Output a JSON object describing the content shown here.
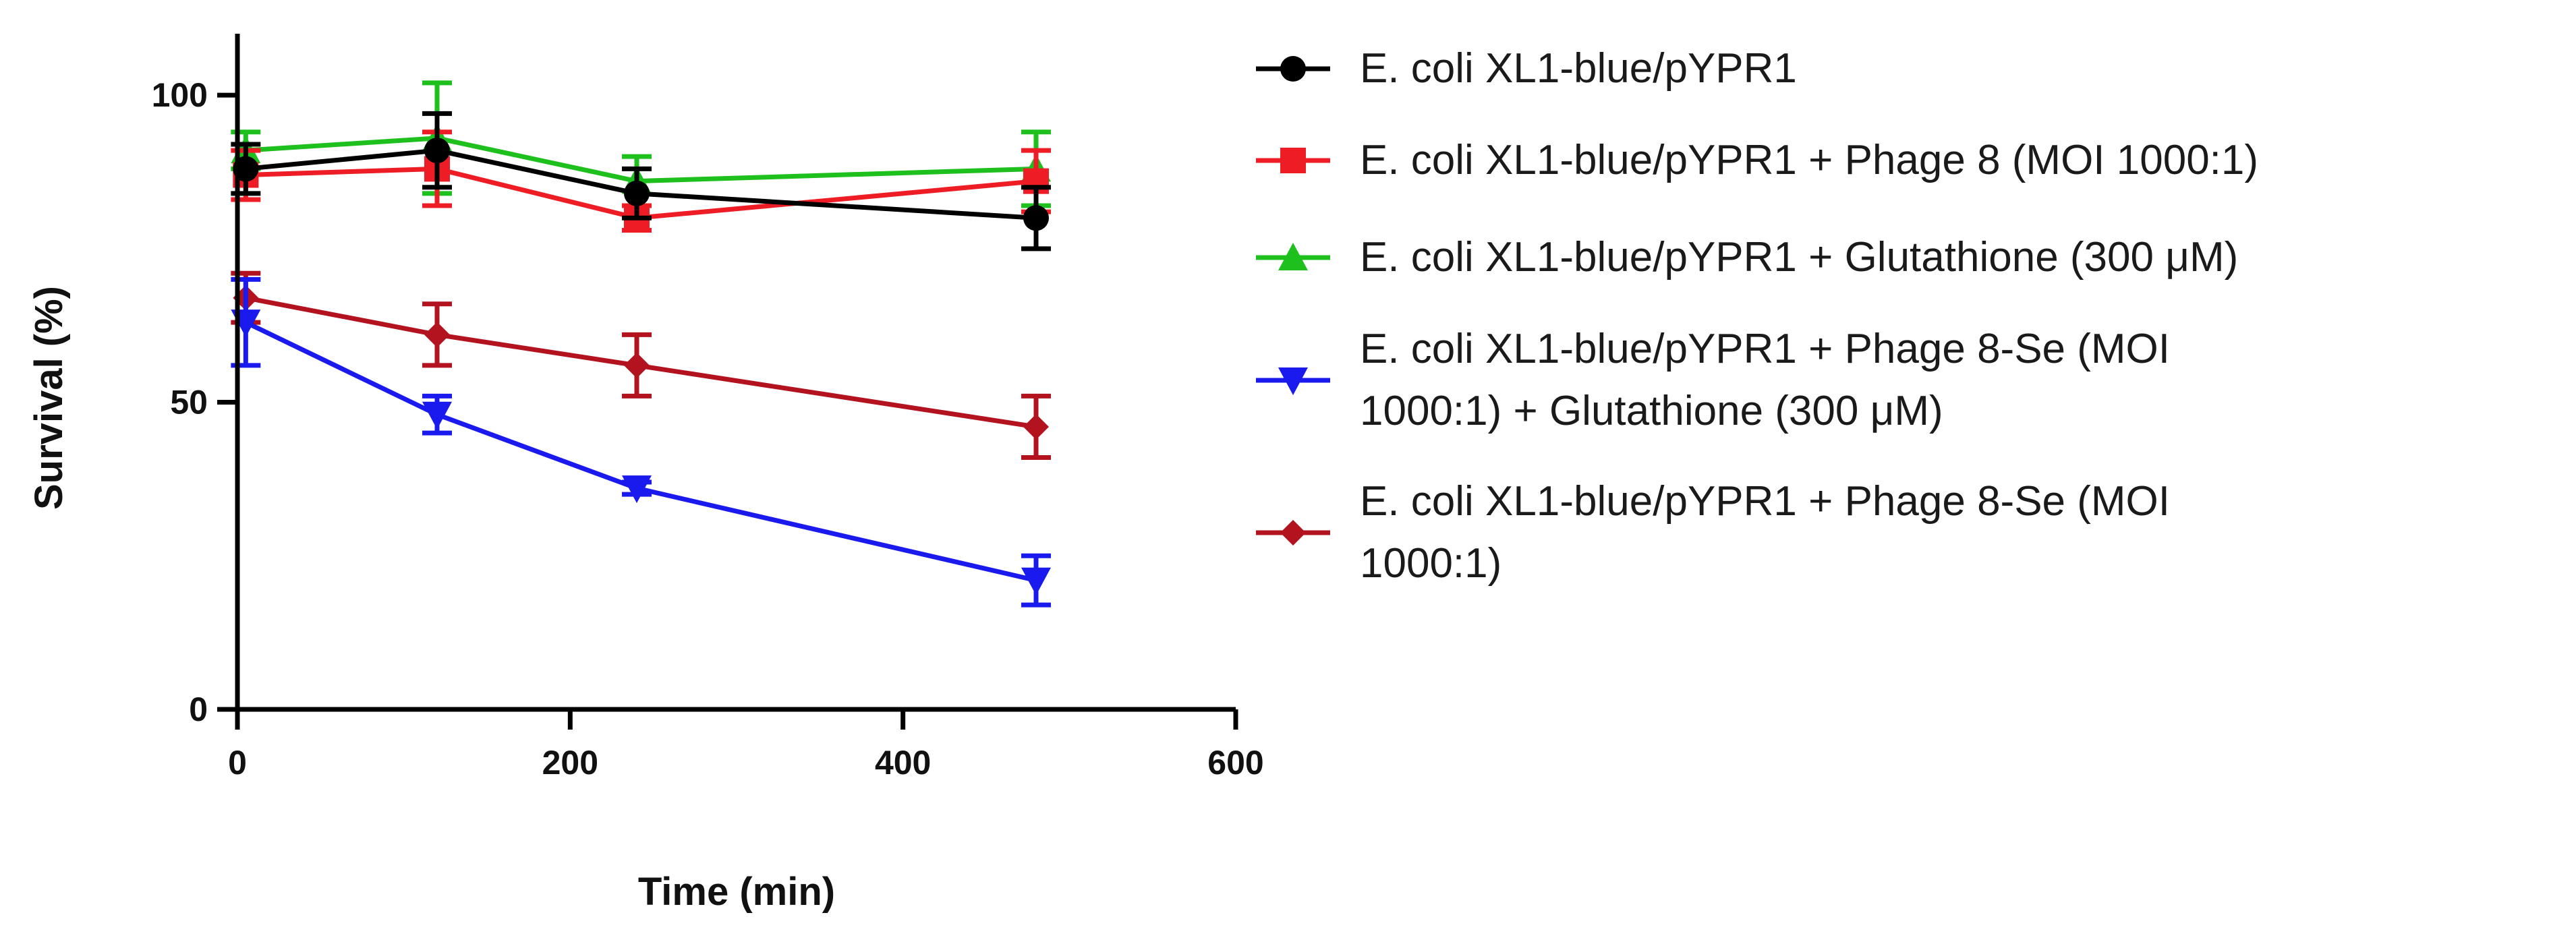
{
  "chart_data": {
    "type": "line",
    "title": "",
    "xlabel": "Time (min)",
    "ylabel": "Survival (%)",
    "xlim": [
      0,
      600
    ],
    "ylim": [
      0,
      110
    ],
    "xticks": [
      0,
      200,
      400,
      600
    ],
    "yticks": [
      0,
      50,
      100
    ],
    "x_tick_labels": [
      "0",
      "200",
      "400",
      "600"
    ],
    "y_tick_labels": [
      "0",
      "50",
      "100"
    ],
    "grid": false,
    "legend_position": "right",
    "x": [
      5,
      120,
      240,
      480
    ],
    "series": [
      {
        "name": "E. coli XL1-blue/pYPR1",
        "legend_lines": [
          "E. coli XL1-blue/pYPR1"
        ],
        "color": "#000000",
        "marker": "circle",
        "values": [
          88,
          91,
          84,
          80
        ],
        "errors": [
          4,
          6,
          4,
          5
        ]
      },
      {
        "name": "E. coli XL1-blue/pYPR1 + Phage 8 (MOI 1000:1)",
        "legend_lines": [
          "E. coli XL1-blue/pYPR1 + Phage 8 (MOI 1000:1)"
        ],
        "color": "#ee1c24",
        "marker": "square",
        "values": [
          87,
          88,
          80,
          86
        ],
        "errors": [
          4,
          6,
          2,
          5
        ]
      },
      {
        "name": "E. coli XL1-blue/pYPR1 + Glutathione (300 μM)",
        "legend_lines": [
          "E. coli XL1-blue/pYPR1 + Glutathione (300 μM)"
        ],
        "color": "#1ec01e",
        "marker": "triangle-up",
        "values": [
          91,
          93,
          86,
          88
        ],
        "errors": [
          3,
          9,
          4,
          6
        ]
      },
      {
        "name": "E. coli XL1-blue/pYPR1 + Phage 8-Se (MOI 1000:1) + Glutathione (300 μM)",
        "legend_lines": [
          "E. coli XL1-blue/pYPR1 + Phage 8-Se (MOI",
          "1000:1) + Glutathione (300 μM)"
        ],
        "color": "#1a1aee",
        "marker": "triangle-down",
        "values": [
          63,
          48,
          36,
          21
        ],
        "errors": [
          7,
          3,
          1,
          4
        ]
      },
      {
        "name": "E. coli XL1-blue/pYPR1 + Phage 8-Se (MOI 1000:1)",
        "legend_lines": [
          "E. coli XL1-blue/pYPR1 + Phage 8-Se (MOI",
          "1000:1)"
        ],
        "color": "#b3121f",
        "marker": "diamond",
        "values": [
          67,
          61,
          56,
          46
        ],
        "errors": [
          4,
          5,
          5,
          5
        ]
      }
    ]
  }
}
